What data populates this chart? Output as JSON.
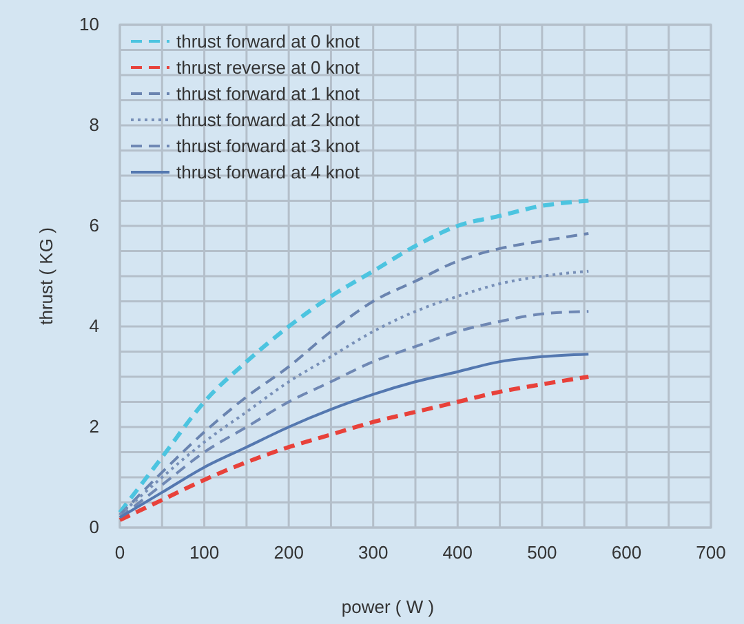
{
  "chart_data": {
    "type": "line",
    "xlabel": "power ( W )",
    "ylabel": "thrust ( KG )",
    "x": [
      0,
      50,
      100,
      150,
      200,
      250,
      300,
      350,
      400,
      450,
      500,
      555
    ],
    "xlim": [
      0,
      700
    ],
    "xticks": [
      0,
      {
        "value": 50,
        "label": null
      },
      100,
      {
        "value": 150,
        "label": null
      },
      200,
      {
        "value": 250,
        "label": null
      },
      300,
      {
        "value": 350,
        "label": null
      },
      400,
      {
        "value": 450,
        "label": null
      },
      500,
      {
        "value": 550,
        "label": null
      },
      600,
      {
        "value": 650,
        "label": null
      },
      700
    ],
    "ylim": [
      0,
      10
    ],
    "yticks": [
      0,
      {
        "value": 0.5,
        "label": null
      },
      {
        "value": 1,
        "label": null
      },
      {
        "value": 1.5,
        "label": null
      },
      2,
      {
        "value": 2.5,
        "label": null
      },
      {
        "value": 3,
        "label": null
      },
      {
        "value": 3.5,
        "label": null
      },
      4,
      {
        "value": 4.5,
        "label": null
      },
      {
        "value": 5,
        "label": null
      },
      {
        "value": 5.5,
        "label": null
      },
      6,
      {
        "value": 6.5,
        "label": null
      },
      {
        "value": 7,
        "label": null
      },
      {
        "value": 7.5,
        "label": null
      },
      8,
      {
        "value": 8.5,
        "label": null
      },
      {
        "value": 9,
        "label": null
      },
      {
        "value": 9.5,
        "label": null
      },
      10
    ],
    "grid": true,
    "legend": "top left",
    "marker": "none",
    "series": [
      {
        "name": "thrust forward at 0 knot",
        "color": "#4cc4e0",
        "line_style": "dashed",
        "values": [
          0.3,
          1.4,
          2.5,
          3.3,
          4.0,
          4.6,
          5.1,
          5.6,
          6.0,
          6.2,
          6.4,
          6.5
        ]
      },
      {
        "name": "thrust reverse at 0 knot",
        "color": "#e8413a",
        "line_style": "dashed",
        "values": [
          0.15,
          0.55,
          0.95,
          1.3,
          1.6,
          1.85,
          2.1,
          2.3,
          2.5,
          2.7,
          2.85,
          3.0
        ]
      },
      {
        "name": "thrust forward at 1 knot",
        "color": "#6a84b0",
        "line_style": "dashed",
        "values": [
          0.25,
          1.1,
          1.9,
          2.6,
          3.2,
          3.9,
          4.5,
          4.9,
          5.3,
          5.55,
          5.7,
          5.85
        ]
      },
      {
        "name": "thrust forward at 2 knot",
        "color": "#7890b8",
        "line_style": "dotted",
        "values": [
          0.25,
          1.0,
          1.7,
          2.3,
          2.9,
          3.4,
          3.9,
          4.3,
          4.6,
          4.85,
          5.0,
          5.1
        ]
      },
      {
        "name": "thrust forward at 3 knot",
        "color": "#6f88b4",
        "line_style": "dashed",
        "values": [
          0.2,
          0.85,
          1.5,
          2.0,
          2.5,
          2.9,
          3.3,
          3.6,
          3.9,
          4.1,
          4.25,
          4.3
        ]
      },
      {
        "name": "thrust forward at 4 knot",
        "color": "#5478b0",
        "line_style": "solid",
        "values": [
          0.2,
          0.7,
          1.2,
          1.6,
          2.0,
          2.35,
          2.65,
          2.9,
          3.1,
          3.3,
          3.4,
          3.45
        ]
      }
    ]
  }
}
